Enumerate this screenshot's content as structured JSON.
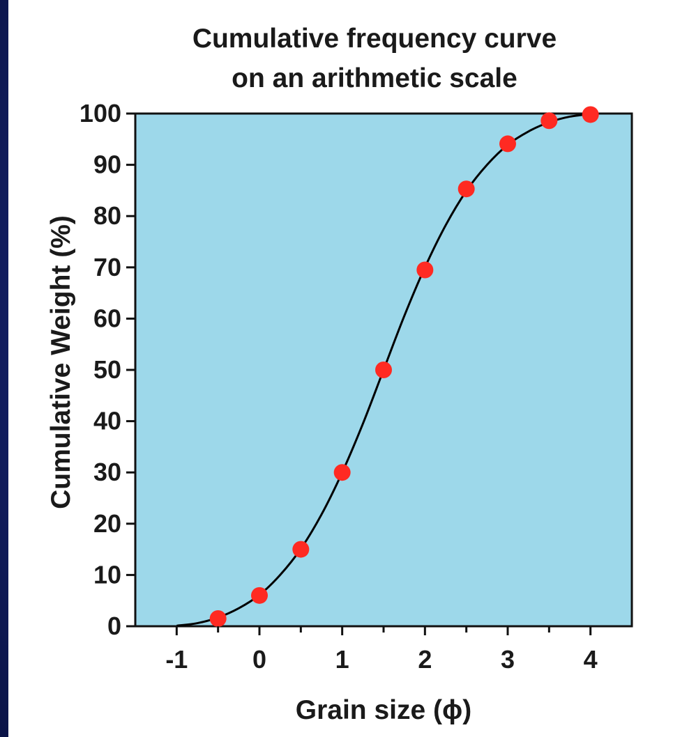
{
  "colors": {
    "plot_background": "#9dd8ea",
    "curve": "#000000",
    "points": "#ff2a22",
    "page_background": "#14216a",
    "card": "#ffffff"
  },
  "chart_data": {
    "type": "scatter",
    "title": "Cumulative frequency curve",
    "subtitle": "on an arithmetic scale",
    "xlabel": "Grain size (ϕ)",
    "ylabel": "Cumulative Weight (%)",
    "xlim": [
      -1.5,
      4.5
    ],
    "ylim": [
      0,
      100
    ],
    "xticks": [
      -1,
      0,
      1,
      2,
      3,
      4
    ],
    "xtick_labels": [
      "-1",
      "0",
      "1",
      "2",
      "3",
      "4"
    ],
    "yticks": [
      0,
      10,
      20,
      30,
      40,
      50,
      60,
      70,
      80,
      90,
      100
    ],
    "ytick_labels": [
      "0",
      "10",
      "20",
      "30",
      "40",
      "50",
      "60",
      "70",
      "80",
      "90",
      "100"
    ],
    "grid": false,
    "legend": "none",
    "series": [
      {
        "kind": "points",
        "x": [
          -0.5,
          0,
          0.5,
          1,
          1.5,
          2,
          2.5,
          3,
          3.5,
          4
        ],
        "y": [
          1.5,
          6,
          15,
          30,
          50,
          69.5,
          85.3,
          94.1,
          98.6,
          99.8
        ]
      },
      {
        "kind": "fitted-curve",
        "x": [
          -1,
          -0.75,
          -0.5,
          -0.25,
          0,
          0.25,
          0.5,
          0.75,
          1,
          1.25,
          1.5,
          1.75,
          2,
          2.25,
          2.5,
          2.75,
          3,
          3.25,
          3.5,
          3.75,
          4
        ],
        "y": [
          0.1,
          0.6,
          1.7,
          3.5,
          6.1,
          10,
          15.1,
          21.8,
          30,
          39.5,
          50,
          60.5,
          70,
          78.2,
          84.9,
          90,
          93.9,
          96.5,
          98.3,
          99.4,
          99.9
        ]
      }
    ]
  }
}
